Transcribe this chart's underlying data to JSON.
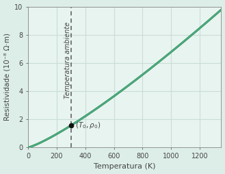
{
  "xlabel": "Temperatura (K)",
  "ylabel": "Resistividade (10⁻⁸ Ω·m)",
  "xlim": [
    0,
    1350
  ],
  "ylim": [
    0,
    10
  ],
  "xticks": [
    0,
    200,
    400,
    600,
    800,
    1000,
    1200
  ],
  "yticks": [
    0,
    2,
    4,
    6,
    8,
    10
  ],
  "T0": 300,
  "rho0": 1.56,
  "T_ambient": 300,
  "T_start": 5,
  "T_end": 1350,
  "exponent": 1.22,
  "curve_color_dark": "#2e8b57",
  "curve_color_light": "#66cdaa",
  "dashed_color": "#555555",
  "point_color": "#111111",
  "ambient_label": "Temperatura ambiente",
  "point_label": "$(T_0, \\rho_0)$",
  "plot_bg_color": "#e8f4f0",
  "fig_bg_color": "#ddeee8",
  "grid_color": "#c8ddd5",
  "axis_color": "#888888",
  "text_color": "#444444",
  "label_fontsize": 8,
  "tick_fontsize": 7,
  "annot_fontsize": 7.5
}
